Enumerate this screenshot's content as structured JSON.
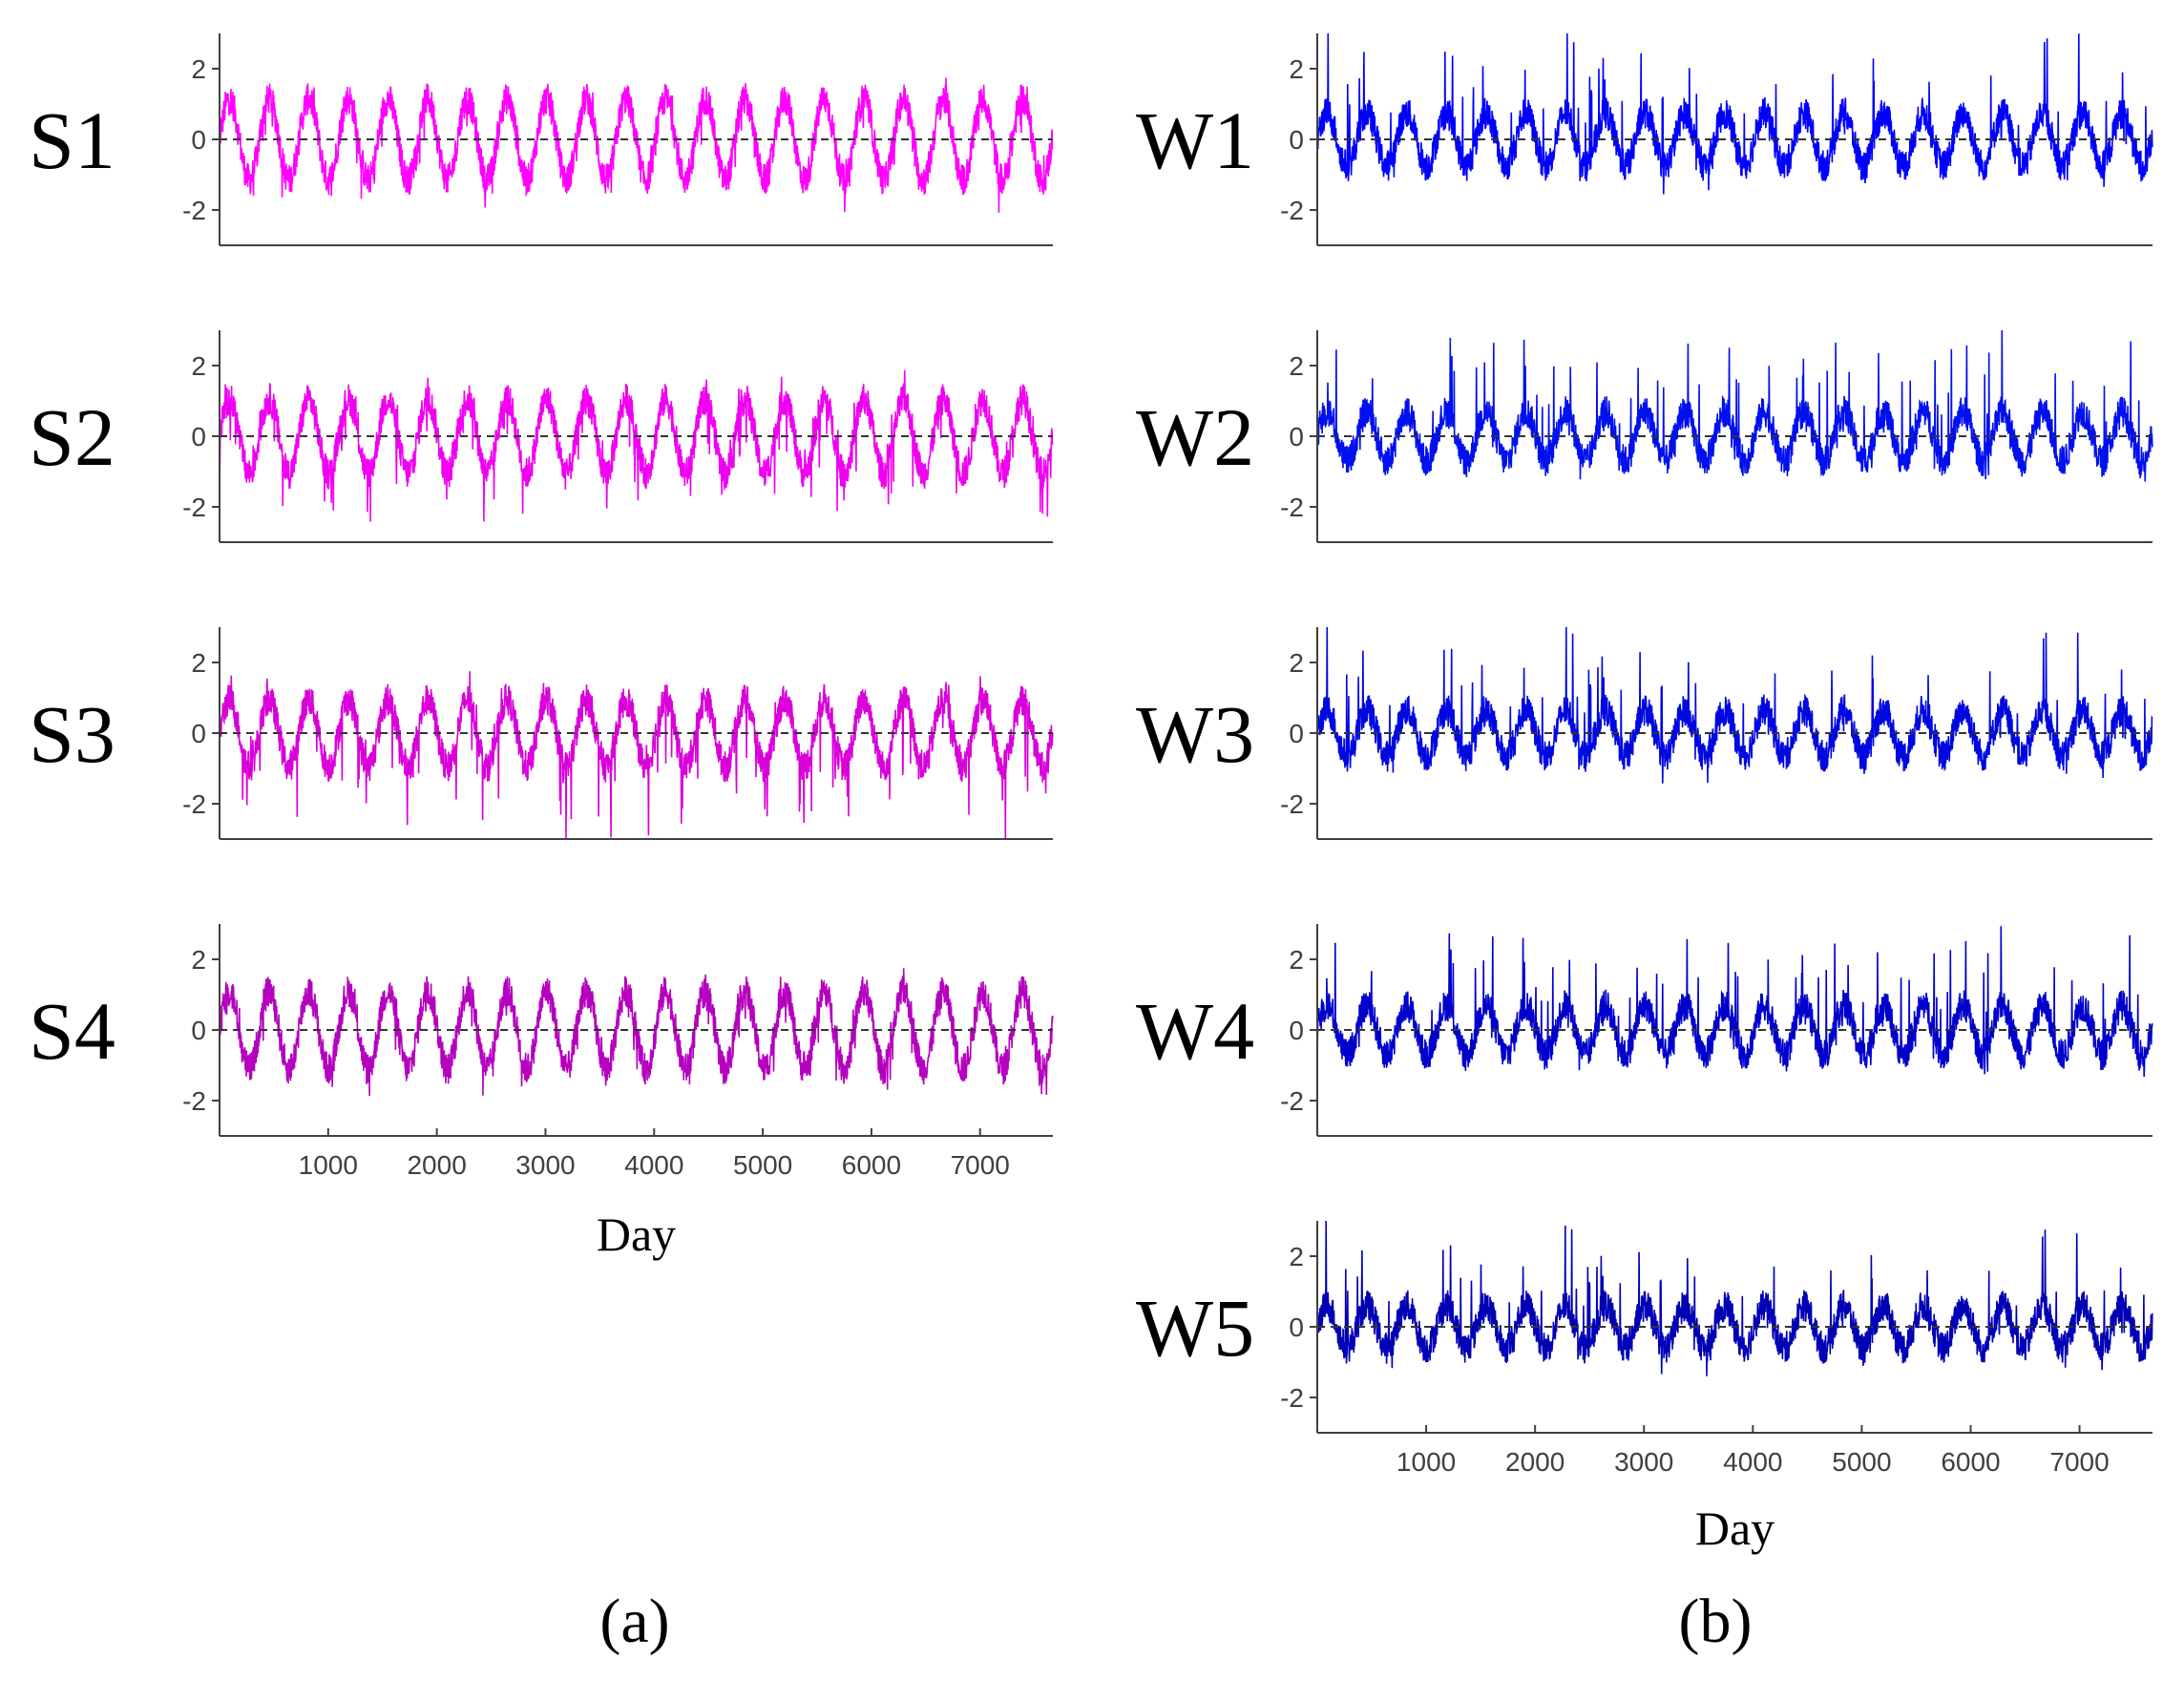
{
  "chart_data": [
    {
      "type": "line",
      "panel": "(a)",
      "xlabel": "Day",
      "xlim": [
        0,
        7670
      ],
      "ylim": [
        -3,
        3
      ],
      "yticks": [
        -2,
        0,
        2
      ],
      "xticks": [
        1000,
        2000,
        3000,
        4000,
        5000,
        6000,
        7000
      ],
      "reference_line": 0,
      "period_days": 365,
      "series": [
        {
          "name": "S1",
          "color": "#ff00ff",
          "amplitude": 1.15,
          "spike_up": 0.3,
          "spike_down": 0.7
        },
        {
          "name": "S2",
          "color": "#f000f0",
          "amplitude": 1.05,
          "spike_up": 0.5,
          "spike_down": 1.3
        },
        {
          "name": "S3",
          "color": "#d900d9",
          "amplitude": 0.95,
          "spike_up": 0.5,
          "spike_down": 1.9
        },
        {
          "name": "S4",
          "color": "#b500bf",
          "amplitude": 1.1,
          "spike_up": 0.3,
          "spike_down": 0.7
        }
      ]
    },
    {
      "type": "line",
      "panel": "(b)",
      "xlabel": "Day",
      "xlim": [
        0,
        7670
      ],
      "ylim": [
        -3,
        3
      ],
      "yticks": [
        -2,
        0,
        2
      ],
      "xticks": [
        1000,
        2000,
        3000,
        4000,
        5000,
        6000,
        7000
      ],
      "reference_line": 0,
      "period_days": 365,
      "series": [
        {
          "name": "W1",
          "color": "#0000ff",
          "amplitude": 0.75,
          "spike_up": 2.2,
          "spike_down": 0.4
        },
        {
          "name": "W2",
          "color": "#0010ee",
          "amplitude": 0.7,
          "spike_up": 2.2,
          "spike_down": 0.4
        },
        {
          "name": "W3",
          "color": "#0008e0",
          "amplitude": 0.65,
          "spike_up": 2.2,
          "spike_down": 0.4
        },
        {
          "name": "W4",
          "color": "#0000cc",
          "amplitude": 0.7,
          "spike_up": 2.1,
          "spike_down": 0.4
        },
        {
          "name": "W5",
          "color": "#0000b5",
          "amplitude": 0.6,
          "spike_up": 2.1,
          "spike_down": 0.4
        }
      ]
    }
  ]
}
